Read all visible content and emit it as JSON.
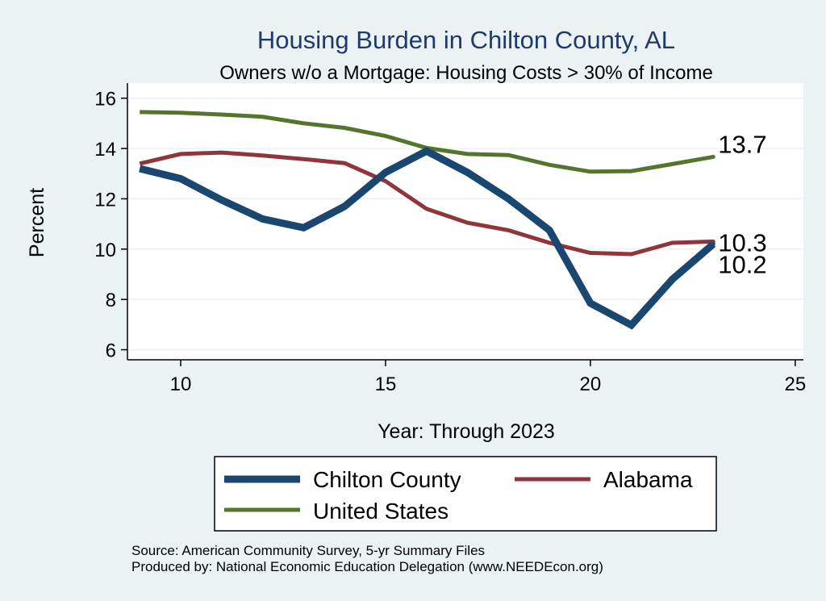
{
  "chart_data": {
    "type": "line",
    "title": "Housing Burden in Chilton County, AL",
    "subtitle": "Owners w/o a Mortgage: Housing Costs > 30% of Income",
    "xlabel": "Year: Through 2023",
    "ylabel": "Percent",
    "xlim": [
      8.7,
      25.2
    ],
    "ylim": [
      5.6,
      16.6
    ],
    "xticks": [
      10,
      15,
      20,
      25
    ],
    "yticks": [
      6,
      8,
      10,
      12,
      14,
      16
    ],
    "grid": true,
    "x": [
      9,
      10,
      11,
      12,
      13,
      14,
      15,
      16,
      17,
      18,
      19,
      20,
      21,
      22,
      23
    ],
    "series": [
      {
        "name": "Chilton County",
        "color": "#1a476f",
        "values": [
          13.2,
          12.8,
          11.95,
          11.2,
          10.85,
          11.7,
          13.05,
          13.9,
          13.05,
          12.0,
          10.75,
          7.85,
          6.98,
          8.8,
          10.2
        ],
        "end_label": "10.2"
      },
      {
        "name": "Alabama",
        "color": "#90353b",
        "values": [
          13.4,
          13.78,
          13.84,
          13.72,
          13.58,
          13.42,
          12.7,
          11.6,
          11.05,
          10.75,
          10.25,
          9.85,
          9.8,
          10.25,
          10.3
        ],
        "end_label": "10.3"
      },
      {
        "name": "United States",
        "color": "#55752f",
        "values": [
          15.45,
          15.42,
          15.35,
          15.26,
          15.0,
          14.82,
          14.5,
          14.02,
          13.78,
          13.74,
          13.35,
          13.08,
          13.1,
          13.38,
          13.67
        ],
        "end_label": "13.7"
      }
    ],
    "legend": {
      "position": "bottom",
      "entries": [
        "Chilton County",
        "Alabama",
        "United States"
      ]
    }
  },
  "notes": {
    "source": "Source: American Community Survey, 5-yr Summary Files",
    "produced_by": "Produced by: National Economic Education Delegation (www.NEEDEcon.org)"
  }
}
